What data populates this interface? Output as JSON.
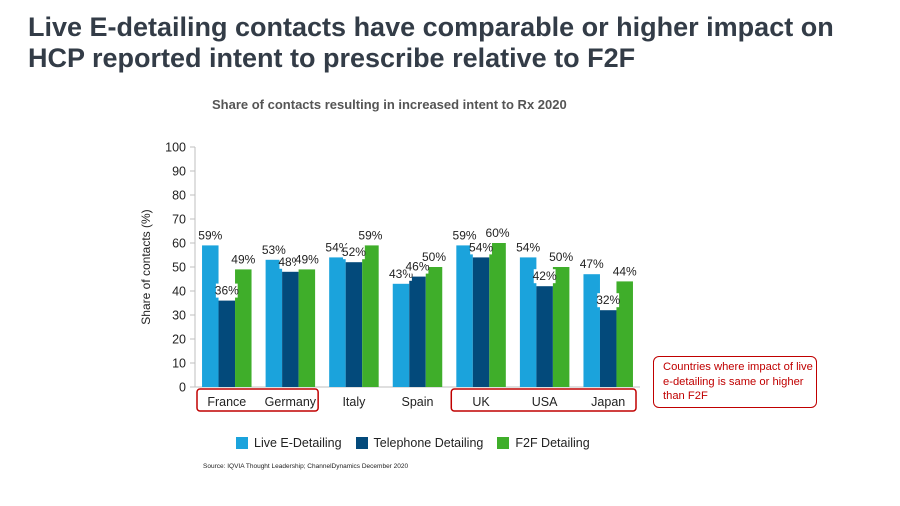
{
  "slide": {
    "title": "Live E-detailing contacts have comparable or higher impact on HCP reported intent to prescribe relative to F2F",
    "source": "Source: IQVIA Thought Leadership; ChannelDynamics December 2020",
    "callout": "Countries where impact of live e-detailing is same or higher than F2F"
  },
  "chart_data": {
    "type": "bar",
    "title": "Share of contacts resulting in increased intent to Rx 2020",
    "xlabel": "",
    "ylabel": "Share of contacts (%)",
    "ylim": [
      0,
      100
    ],
    "yticks": [
      0,
      10,
      20,
      30,
      40,
      50,
      60,
      70,
      80,
      90,
      100
    ],
    "categories": [
      "France",
      "Germany",
      "Italy",
      "Spain",
      "UK",
      "USA",
      "Japan"
    ],
    "series": [
      {
        "name": "Live E-Detailing",
        "color": "#1ba3dc",
        "values": [
          59,
          53,
          54,
          43,
          59,
          54,
          47
        ]
      },
      {
        "name": "Telephone Detailing",
        "color": "#034a7b",
        "values": [
          36,
          48,
          52,
          46,
          54,
          42,
          32
        ]
      },
      {
        "name": "F2F Detailing",
        "color": "#3fae2a",
        "values": [
          49,
          49,
          59,
          50,
          60,
          50,
          44
        ]
      }
    ],
    "data_label_suffix": "%",
    "highlighted_groups": [
      [
        "France",
        "Germany"
      ],
      [
        "UK",
        "USA",
        "Japan"
      ]
    ],
    "highlight_color": "#c00000",
    "grid": false,
    "legend_position": "bottom"
  }
}
